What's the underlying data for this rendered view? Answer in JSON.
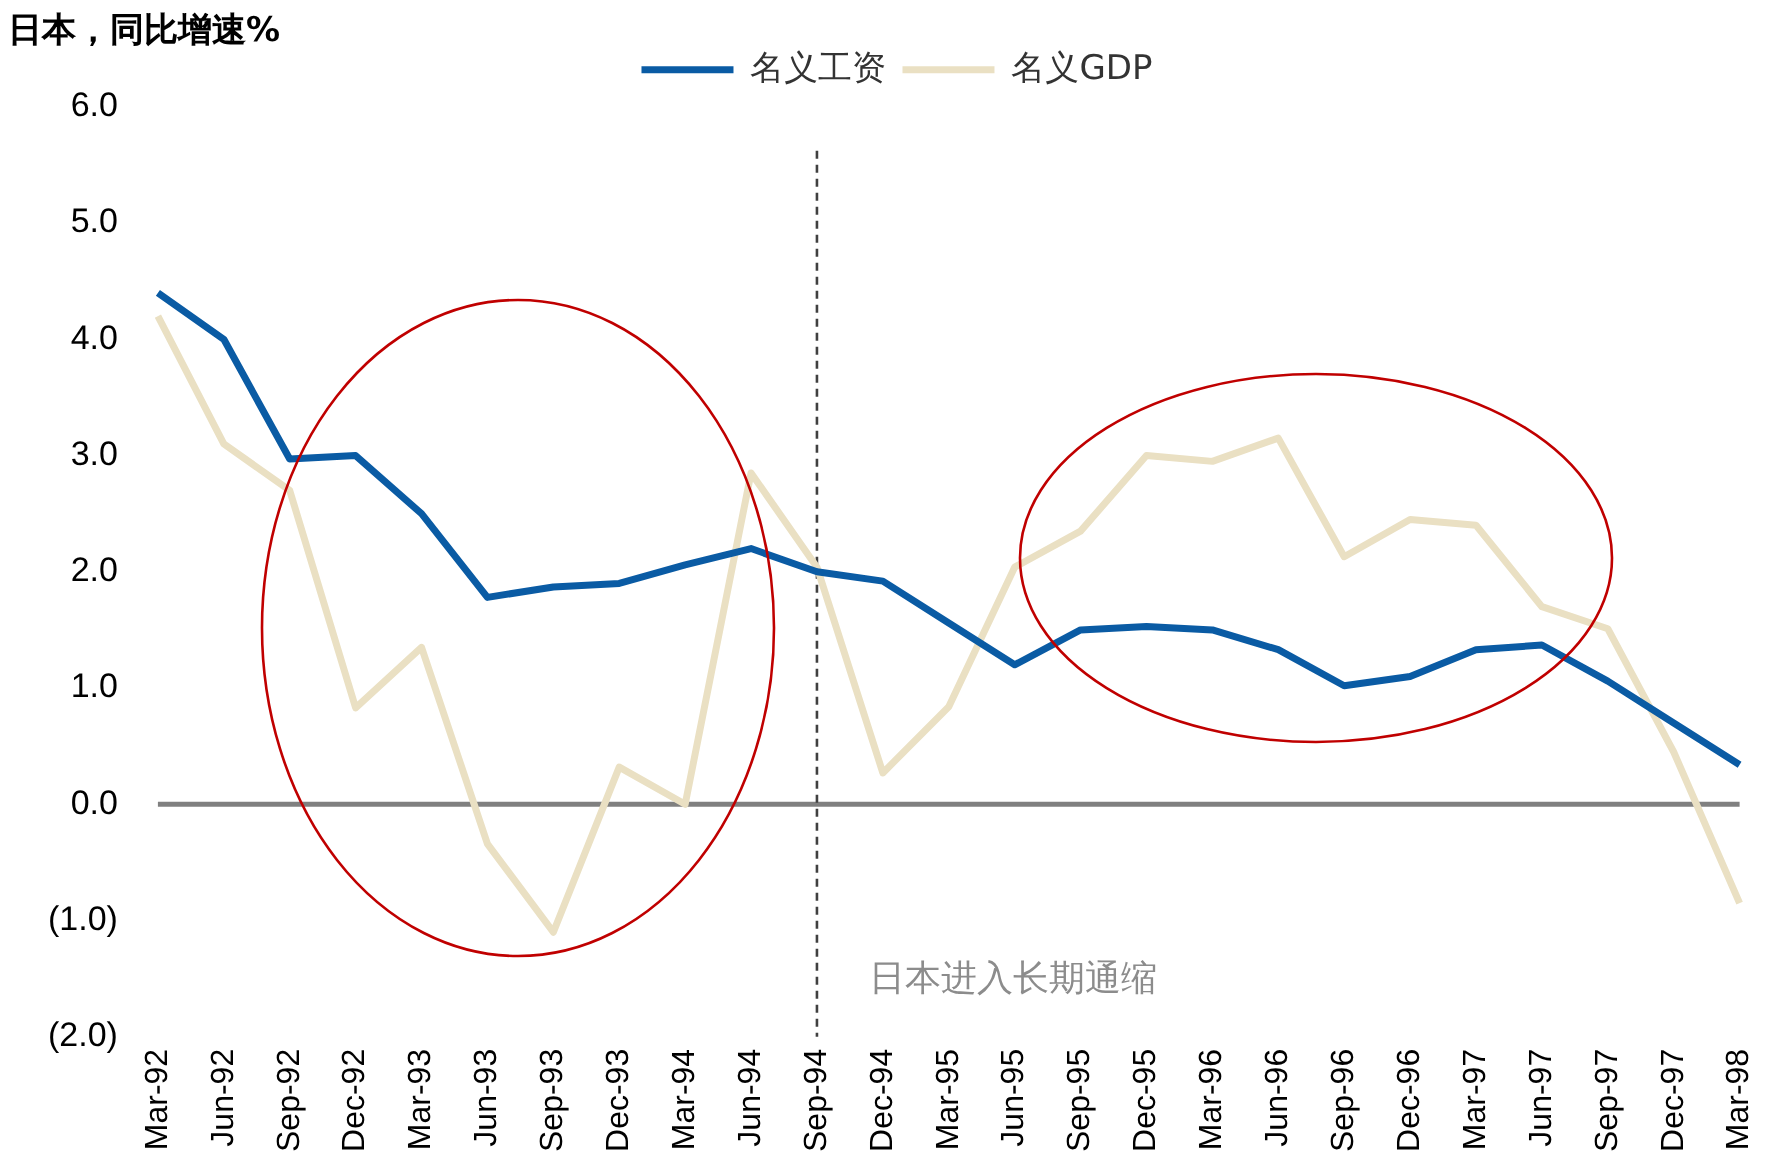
{
  "chart_data": {
    "type": "line",
    "title": "日本，同比增速%",
    "categories": [
      "Mar-92",
      "Jun-92",
      "Sep-92",
      "Dec-92",
      "Mar-93",
      "Jun-93",
      "Sep-93",
      "Dec-93",
      "Mar-94",
      "Jun-94",
      "Sep-94",
      "Dec-94",
      "Mar-95",
      "Jun-95",
      "Sep-95",
      "Dec-95",
      "Mar-96",
      "Jun-96",
      "Sep-96",
      "Dec-96",
      "Mar-97",
      "Jun-97",
      "Sep-97",
      "Dec-97",
      "Mar-98"
    ],
    "series": [
      {
        "name": "名义工资",
        "color": "#0a5ba4",
        "values": [
          4.4,
          4.0,
          2.97,
          3.0,
          2.5,
          1.78,
          1.87,
          1.9,
          2.06,
          2.2,
          2.0,
          1.92,
          1.56,
          1.2,
          1.5,
          1.53,
          1.5,
          1.33,
          1.02,
          1.1,
          1.33,
          1.37,
          1.06,
          0.7,
          0.34
        ]
      },
      {
        "name": "名义GDP",
        "color": "#eae0c3",
        "values": [
          4.2,
          3.1,
          2.7,
          0.83,
          1.35,
          -0.34,
          -1.1,
          0.32,
          0.0,
          2.85,
          2.04,
          0.27,
          0.84,
          2.04,
          2.35,
          3.0,
          2.95,
          3.15,
          2.13,
          2.45,
          2.4,
          1.7,
          1.51,
          0.45,
          -0.85
        ]
      }
    ],
    "ylim": [
      -2,
      6
    ],
    "yticks": [
      {
        "value": -2,
        "label": "(2.0)"
      },
      {
        "value": -1,
        "label": "(1.0)"
      },
      {
        "value": 0,
        "label": "0.0"
      },
      {
        "value": 1,
        "label": "1.0"
      },
      {
        "value": 2,
        "label": "2.0"
      },
      {
        "value": 3,
        "label": "3.0"
      },
      {
        "value": 4,
        "label": "4.0"
      },
      {
        "value": 5,
        "label": "5.0"
      },
      {
        "value": 6,
        "label": "6.0"
      }
    ],
    "ref_lines": [
      {
        "axis": "y",
        "value": 0,
        "label": null,
        "color": "#808080",
        "line_style": "solid"
      },
      {
        "axis": "x",
        "value": "Sep-94",
        "label": "日本进入长期通缩",
        "color": "#404040",
        "line_style": "dashed"
      }
    ],
    "grid": false,
    "legend": "top",
    "marker": "none",
    "line_style": "solid"
  }
}
